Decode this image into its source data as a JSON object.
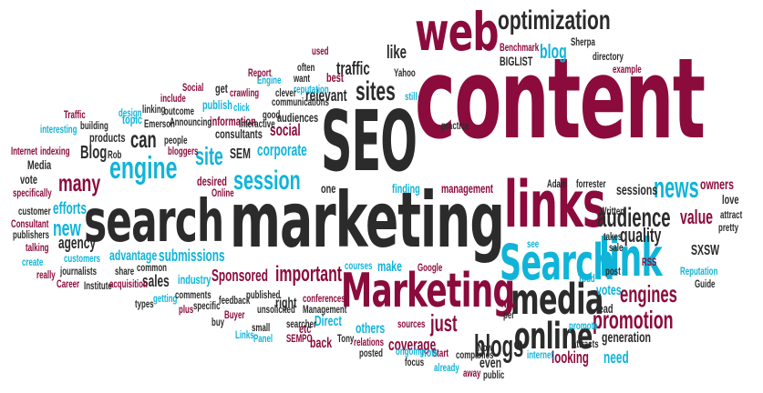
{
  "colors": {
    "crimson": "#8b0b3c",
    "charcoal": "#2b2b2b",
    "cyan": "#10b4d8",
    "white": "#ffffff"
  },
  "cloud": {
    "words": [
      {
        "text": "content",
        "color": "crimson"
      },
      {
        "text": "marketing",
        "color": "charcoal"
      },
      {
        "text": "web",
        "color": "crimson"
      },
      {
        "text": "SEO",
        "color": "charcoal"
      },
      {
        "text": "search",
        "color": "charcoal"
      },
      {
        "text": "links",
        "color": "crimson"
      },
      {
        "text": "Marketing",
        "color": "crimson"
      },
      {
        "text": "Search",
        "color": "cyan"
      },
      {
        "text": "link",
        "color": "cyan"
      },
      {
        "text": "media",
        "color": "charcoal"
      },
      {
        "text": "online",
        "color": "charcoal"
      },
      {
        "text": "optimization",
        "color": "charcoal"
      },
      {
        "text": "engine",
        "color": "cyan"
      },
      {
        "text": "session",
        "color": "cyan"
      },
      {
        "text": "news",
        "color": "cyan"
      },
      {
        "text": "audience",
        "color": "charcoal"
      },
      {
        "text": "sites",
        "color": "charcoal"
      },
      {
        "text": "blogs",
        "color": "charcoal"
      },
      {
        "text": "promotion",
        "color": "crimson"
      },
      {
        "text": "engines",
        "color": "crimson"
      },
      {
        "text": "important",
        "color": "crimson"
      },
      {
        "text": "many",
        "color": "crimson"
      },
      {
        "text": "new",
        "color": "cyan"
      },
      {
        "text": "site",
        "color": "cyan"
      },
      {
        "text": "can",
        "color": "charcoal"
      },
      {
        "text": "Blog",
        "color": "charcoal"
      },
      {
        "text": "blog",
        "color": "cyan"
      },
      {
        "text": "traffic",
        "color": "charcoal"
      },
      {
        "text": "like",
        "color": "charcoal"
      },
      {
        "text": "relevant",
        "color": "charcoal"
      },
      {
        "text": "social",
        "color": "crimson"
      },
      {
        "text": "corporate",
        "color": "cyan"
      },
      {
        "text": "efforts",
        "color": "cyan"
      },
      {
        "text": "agency",
        "color": "charcoal"
      },
      {
        "text": "sales",
        "color": "charcoal"
      },
      {
        "text": "submissions",
        "color": "cyan"
      },
      {
        "text": "Sponsored",
        "color": "crimson"
      },
      {
        "text": "advantage",
        "color": "cyan"
      },
      {
        "text": "just",
        "color": "crimson"
      },
      {
        "text": "coverage",
        "color": "crimson"
      },
      {
        "text": "quality",
        "color": "charcoal"
      },
      {
        "text": "value",
        "color": "crimson"
      },
      {
        "text": "sessions",
        "color": "charcoal"
      },
      {
        "text": "SXSW",
        "color": "charcoal"
      },
      {
        "text": "votes",
        "color": "cyan"
      },
      {
        "text": "need",
        "color": "cyan"
      },
      {
        "text": "SEM",
        "color": "charcoal"
      },
      {
        "text": "information",
        "color": "crimson"
      },
      {
        "text": "BIGLIST",
        "color": "charcoal"
      },
      {
        "text": "Benchmark",
        "color": "crimson"
      },
      {
        "text": "finding",
        "color": "cyan"
      },
      {
        "text": "management",
        "color": "crimson"
      },
      {
        "text": "make",
        "color": "cyan"
      },
      {
        "text": "right",
        "color": "charcoal"
      },
      {
        "text": "Direct",
        "color": "cyan"
      },
      {
        "text": "others",
        "color": "cyan"
      },
      {
        "text": "back",
        "color": "crimson"
      },
      {
        "text": "etc",
        "color": "crimson"
      },
      {
        "text": "Start",
        "color": "crimson"
      },
      {
        "text": "lead",
        "color": "charcoal"
      },
      {
        "text": "generation",
        "color": "charcoal"
      },
      {
        "text": "looking",
        "color": "crimson"
      },
      {
        "text": "now",
        "color": "cyan"
      },
      {
        "text": "even",
        "color": "charcoal"
      },
      {
        "text": "products",
        "color": "charcoal"
      },
      {
        "text": "publish",
        "color": "cyan"
      },
      {
        "text": "consultants",
        "color": "charcoal"
      },
      {
        "text": "audiences",
        "color": "charcoal"
      },
      {
        "text": "owners",
        "color": "crimson"
      },
      {
        "text": "love",
        "color": "charcoal"
      },
      {
        "text": "industry",
        "color": "cyan"
      },
      {
        "text": "conferences",
        "color": "crimson"
      },
      {
        "text": "Google",
        "color": "crimson"
      },
      {
        "text": "Sherpa",
        "color": "charcoal"
      },
      {
        "text": "directory",
        "color": "charcoal"
      },
      {
        "text": "example",
        "color": "crimson"
      },
      {
        "text": "customers",
        "color": "cyan"
      },
      {
        "text": "journalists",
        "color": "charcoal"
      },
      {
        "text": "Institute",
        "color": "charcoal"
      },
      {
        "text": "share",
        "color": "charcoal"
      },
      {
        "text": "common",
        "color": "charcoal"
      },
      {
        "text": "acquisition",
        "color": "crimson"
      },
      {
        "text": "getting",
        "color": "cyan"
      },
      {
        "text": "comments",
        "color": "charcoal"
      },
      {
        "text": "specific",
        "color": "charcoal"
      },
      {
        "text": "feedback",
        "color": "charcoal"
      },
      {
        "text": "published",
        "color": "charcoal"
      },
      {
        "text": "unsolicited",
        "color": "charcoal"
      },
      {
        "text": "Management",
        "color": "charcoal"
      },
      {
        "text": "searcher",
        "color": "charcoal"
      },
      {
        "text": "Tony",
        "color": "charcoal"
      },
      {
        "text": "relations",
        "color": "crimson"
      },
      {
        "text": "posted",
        "color": "charcoal"
      },
      {
        "text": "sources",
        "color": "crimson"
      },
      {
        "text": "ongoing",
        "color": "cyan"
      },
      {
        "text": "focus",
        "color": "charcoal"
      },
      {
        "text": "already",
        "color": "cyan"
      },
      {
        "text": "away",
        "color": "crimson"
      },
      {
        "text": "companies",
        "color": "charcoal"
      },
      {
        "text": "public",
        "color": "charcoal"
      },
      {
        "text": "internet",
        "color": "cyan"
      },
      {
        "text": "attracts",
        "color": "charcoal"
      },
      {
        "text": "promote",
        "color": "cyan"
      },
      {
        "text": "post",
        "color": "charcoal"
      },
      {
        "text": "Reputation",
        "color": "cyan"
      },
      {
        "text": "Guide",
        "color": "charcoal"
      },
      {
        "text": "RSS",
        "color": "crimson"
      },
      {
        "text": "takes",
        "color": "charcoal"
      },
      {
        "text": "sale",
        "color": "charcoal"
      },
      {
        "text": "pretty",
        "color": "charcoal"
      },
      {
        "text": "attract",
        "color": "charcoal"
      },
      {
        "text": "forrester",
        "color": "charcoal"
      },
      {
        "text": "Adam",
        "color": "charcoal"
      },
      {
        "text": "practice",
        "color": "charcoal"
      },
      {
        "text": "Yahoo",
        "color": "charcoal"
      },
      {
        "text": "best",
        "color": "crimson"
      },
      {
        "text": "used",
        "color": "crimson"
      },
      {
        "text": "often",
        "color": "charcoal"
      },
      {
        "text": "want",
        "color": "charcoal"
      },
      {
        "text": "reputation",
        "color": "cyan"
      },
      {
        "text": "clever",
        "color": "charcoal"
      },
      {
        "text": "communications",
        "color": "charcoal"
      },
      {
        "text": "good",
        "color": "charcoal"
      },
      {
        "text": "Interactive",
        "color": "charcoal"
      },
      {
        "text": "crawling",
        "color": "crimson"
      },
      {
        "text": "Engine",
        "color": "cyan"
      },
      {
        "text": "Report",
        "color": "crimson"
      },
      {
        "text": "get",
        "color": "charcoal"
      },
      {
        "text": "Social",
        "color": "crimson"
      },
      {
        "text": "include",
        "color": "crimson"
      },
      {
        "text": "outcome",
        "color": "charcoal"
      },
      {
        "text": "linking",
        "color": "charcoal"
      },
      {
        "text": "Emerson",
        "color": "charcoal"
      },
      {
        "text": "Announcing",
        "color": "charcoal"
      },
      {
        "text": "people",
        "color": "charcoal"
      },
      {
        "text": "topic",
        "color": "cyan"
      },
      {
        "text": "bloggers",
        "color": "crimson"
      },
      {
        "text": "Traffic",
        "color": "crimson"
      },
      {
        "text": "building",
        "color": "charcoal"
      },
      {
        "text": "design",
        "color": "cyan"
      },
      {
        "text": "interesting",
        "color": "cyan"
      },
      {
        "text": "Internet",
        "color": "crimson"
      },
      {
        "text": "indexing",
        "color": "crimson"
      },
      {
        "text": "Media",
        "color": "charcoal"
      },
      {
        "text": "vote",
        "color": "charcoal"
      },
      {
        "text": "specifically",
        "color": "crimson"
      },
      {
        "text": "customer",
        "color": "charcoal"
      },
      {
        "text": "Consultant",
        "color": "crimson"
      },
      {
        "text": "publishers",
        "color": "charcoal"
      },
      {
        "text": "talking",
        "color": "crimson"
      },
      {
        "text": "create",
        "color": "cyan"
      },
      {
        "text": "really",
        "color": "crimson"
      },
      {
        "text": "Career",
        "color": "crimson"
      },
      {
        "text": "desired",
        "color": "crimson"
      },
      {
        "text": "Online",
        "color": "crimson"
      },
      {
        "text": "one",
        "color": "charcoal"
      },
      {
        "text": "see",
        "color": "cyan"
      },
      {
        "text": "courses",
        "color": "cyan"
      },
      {
        "text": "plus",
        "color": "crimson"
      },
      {
        "text": "types",
        "color": "charcoal"
      },
      {
        "text": "buy",
        "color": "charcoal"
      },
      {
        "text": "Buyer",
        "color": "crimson"
      },
      {
        "text": "Links",
        "color": "cyan"
      },
      {
        "text": "small",
        "color": "charcoal"
      },
      {
        "text": "Panel",
        "color": "cyan"
      },
      {
        "text": "SEMPO",
        "color": "crimson"
      },
      {
        "text": "New",
        "color": "crimson"
      },
      {
        "text": "per",
        "color": "charcoal"
      },
      {
        "text": "Now",
        "color": "charcoal"
      },
      {
        "text": "Rob",
        "color": "charcoal"
      },
      {
        "text": "Todd",
        "color": "cyan"
      },
      {
        "text": "click",
        "color": "cyan"
      },
      {
        "text": "still",
        "color": "cyan"
      },
      {
        "text": "Written",
        "color": "charcoal"
      }
    ]
  }
}
